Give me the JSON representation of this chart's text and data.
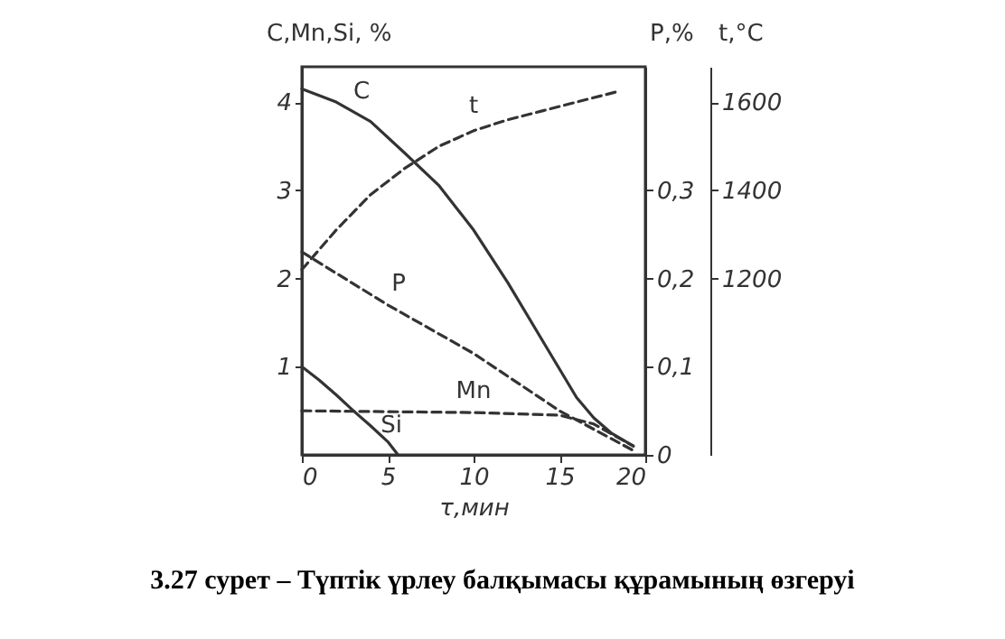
{
  "chart_data": {
    "type": "line",
    "xlabel": "τ,мин",
    "ylabel": "C,Mn,Si, %",
    "y2label": "P,%",
    "y3label": "t,°C",
    "annotations": [
      "3.27 сурет – Түптік үрлеу балқымасы құрамының өзгеруі"
    ],
    "xlim": [
      0,
      20
    ],
    "xticks": [
      0,
      5,
      10,
      15,
      20
    ],
    "ylim": [
      0,
      4.4
    ],
    "yticks": [
      1,
      2,
      3,
      4
    ],
    "y2lim": [
      0,
      0.44
    ],
    "y2ticks": [
      0,
      {
        "value": 0.1,
        "label": "0,1"
      },
      {
        "value": 0.2,
        "label": "0,2"
      },
      {
        "value": 0.3,
        "label": "0,3"
      }
    ],
    "y3lim": [
      800,
      1680
    ],
    "y3ticks": [
      1200,
      1400,
      1600
    ],
    "grid": false,
    "series": [
      {
        "name": "C",
        "color": "#333333",
        "line_style": "solid",
        "x": [
          0,
          2,
          4,
          6,
          8,
          10,
          12,
          14,
          16,
          17,
          18,
          19.3
        ],
        "values": [
          4.15,
          4.0,
          3.78,
          3.42,
          3.05,
          2.55,
          1.95,
          1.3,
          0.65,
          0.42,
          0.25,
          0.1
        ]
      },
      {
        "name": "t",
        "color": "#333333",
        "line_style": "dashed",
        "axis": "y3",
        "x": [
          0,
          2,
          4,
          6,
          8,
          10,
          12,
          14,
          16,
          18.5
        ],
        "values": [
          1220,
          1310,
          1390,
          1450,
          1500,
          1535,
          1560,
          1580,
          1600,
          1625
        ]
      },
      {
        "name": "P",
        "color": "#333333",
        "line_style": "dashed",
        "axis": "y2",
        "x": [
          0,
          5,
          10,
          15,
          19.3
        ],
        "values": [
          0.23,
          0.17,
          0.115,
          0.05,
          0.005
        ]
      },
      {
        "name": "Mn",
        "color": "#333333",
        "line_style": "dashed",
        "x": [
          0,
          5,
          10,
          15,
          17,
          19.3
        ],
        "values": [
          0.5,
          0.49,
          0.48,
          0.45,
          0.35,
          0.1
        ]
      },
      {
        "name": "Si",
        "color": "#333333",
        "line_style": "solid",
        "x": [
          0,
          1,
          2,
          3,
          4,
          5,
          5.6
        ],
        "values": [
          1.0,
          0.85,
          0.68,
          0.5,
          0.33,
          0.15,
          0
        ]
      }
    ]
  }
}
